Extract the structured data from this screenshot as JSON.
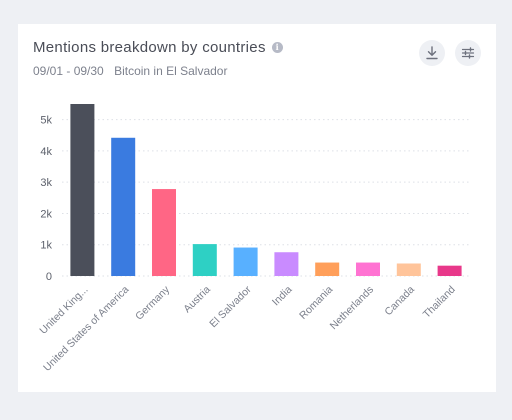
{
  "card": {
    "title": "Mentions breakdown by countries",
    "date_range": "09/01 - 09/30",
    "topic": "Bitcoin in El Salvador",
    "info_icon": "info-icon",
    "download_icon": "download-icon",
    "settings_icon": "sliders-icon"
  },
  "chart_data": {
    "type": "bar",
    "categories": [
      "United King...",
      "United States of America",
      "Germany",
      "Austria",
      "El Salvador",
      "India",
      "Romania",
      "Netherlands",
      "Canada",
      "Thailand"
    ],
    "values": [
      5500,
      4420,
      2780,
      1020,
      910,
      760,
      430,
      430,
      400,
      330
    ],
    "colors": [
      "#4b4f5a",
      "#3a7be0",
      "#ff6685",
      "#2ed0c4",
      "#58b0ff",
      "#c98bff",
      "#ff9f5a",
      "#ff73d2",
      "#ffc49a",
      "#e8388a"
    ],
    "yticks": [
      0,
      1000,
      2000,
      3000,
      4000,
      5000
    ],
    "ytick_labels": [
      "0",
      "1k",
      "2k",
      "3k",
      "4k",
      "5k"
    ],
    "ylim": [
      0,
      5500
    ],
    "grid": true
  }
}
